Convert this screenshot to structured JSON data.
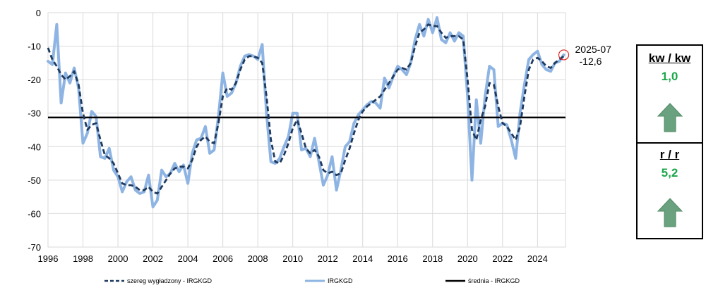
{
  "chart_data": {
    "type": "line",
    "x_axis": {
      "min": 1996,
      "max": 2025.6,
      "ticks": [
        "1996",
        "1998",
        "2000",
        "2002",
        "2004",
        "2006",
        "2008",
        "2010",
        "2012",
        "2014",
        "2016",
        "2018",
        "2020",
        "2022",
        "2024"
      ]
    },
    "y_axis": {
      "min": -70,
      "max": 0,
      "ticks": [
        "0",
        "-10",
        "-20",
        "-30",
        "-40",
        "-50",
        "-60",
        "-70"
      ]
    },
    "grid": true,
    "legend_position": "bottom",
    "series": [
      {
        "name": "IRGKGD",
        "color": "#8eb4e3",
        "style": "solid",
        "points": [
          [
            1996.0,
            -14.5
          ],
          [
            1996.25,
            -15.5
          ],
          [
            1996.5,
            -3.5
          ],
          [
            1996.75,
            -27
          ],
          [
            1997.0,
            -18
          ],
          [
            1997.25,
            -21
          ],
          [
            1997.5,
            -16.5
          ],
          [
            1997.75,
            -22.5
          ],
          [
            1998.0,
            -39
          ],
          [
            1998.25,
            -36
          ],
          [
            1998.5,
            -29.5
          ],
          [
            1998.75,
            -31
          ],
          [
            1999.0,
            -43
          ],
          [
            1999.25,
            -43.5
          ],
          [
            1999.5,
            -40.5
          ],
          [
            1999.75,
            -47
          ],
          [
            2000.0,
            -49
          ],
          [
            2000.25,
            -53.5
          ],
          [
            2000.5,
            -50.5
          ],
          [
            2000.75,
            -49
          ],
          [
            2001.0,
            -53
          ],
          [
            2001.25,
            -54
          ],
          [
            2001.5,
            -53.5
          ],
          [
            2001.75,
            -48.5
          ],
          [
            2002.0,
            -58
          ],
          [
            2002.25,
            -56
          ],
          [
            2002.5,
            -47
          ],
          [
            2002.75,
            -49
          ],
          [
            2003.0,
            -48
          ],
          [
            2003.25,
            -45
          ],
          [
            2003.5,
            -47.5
          ],
          [
            2003.75,
            -45.5
          ],
          [
            2004.0,
            -51
          ],
          [
            2004.25,
            -42
          ],
          [
            2004.5,
            -38
          ],
          [
            2004.75,
            -37.5
          ],
          [
            2005.0,
            -34
          ],
          [
            2005.25,
            -42
          ],
          [
            2005.5,
            -41
          ],
          [
            2005.75,
            -31
          ],
          [
            2006.0,
            -18
          ],
          [
            2006.25,
            -25
          ],
          [
            2006.5,
            -24
          ],
          [
            2006.75,
            -21
          ],
          [
            2007.0,
            -16
          ],
          [
            2007.25,
            -13
          ],
          [
            2007.5,
            -12.5
          ],
          [
            2007.75,
            -13
          ],
          [
            2008.0,
            -14
          ],
          [
            2008.25,
            -9.5
          ],
          [
            2008.5,
            -30
          ],
          [
            2008.75,
            -44.5
          ],
          [
            2009.0,
            -45
          ],
          [
            2009.25,
            -43.5
          ],
          [
            2009.5,
            -40
          ],
          [
            2009.75,
            -37
          ],
          [
            2010.0,
            -30
          ],
          [
            2010.25,
            -30
          ],
          [
            2010.5,
            -41
          ],
          [
            2010.75,
            -40.5
          ],
          [
            2011.0,
            -43
          ],
          [
            2011.25,
            -37.5
          ],
          [
            2011.5,
            -44.5
          ],
          [
            2011.75,
            -51.5
          ],
          [
            2012.0,
            -48.5
          ],
          [
            2012.25,
            -43
          ],
          [
            2012.5,
            -53
          ],
          [
            2012.75,
            -47
          ],
          [
            2013.0,
            -40
          ],
          [
            2013.25,
            -38.5
          ],
          [
            2013.5,
            -33
          ],
          [
            2013.75,
            -30.5
          ],
          [
            2014.0,
            -29
          ],
          [
            2014.25,
            -27.5
          ],
          [
            2014.5,
            -26.5
          ],
          [
            2014.75,
            -27
          ],
          [
            2015.0,
            -28.5
          ],
          [
            2015.25,
            -19.5
          ],
          [
            2015.5,
            -22.5
          ],
          [
            2015.75,
            -19
          ],
          [
            2016.0,
            -16
          ],
          [
            2016.25,
            -17
          ],
          [
            2016.5,
            -18.5
          ],
          [
            2016.75,
            -15
          ],
          [
            2017.0,
            -8
          ],
          [
            2017.25,
            -3.5
          ],
          [
            2017.5,
            -7
          ],
          [
            2017.75,
            -2
          ],
          [
            2018.0,
            -6
          ],
          [
            2018.25,
            -1.5
          ],
          [
            2018.5,
            -8
          ],
          [
            2018.75,
            -9
          ],
          [
            2019.0,
            -6
          ],
          [
            2019.25,
            -8.5
          ],
          [
            2019.5,
            -6
          ],
          [
            2019.75,
            -7
          ],
          [
            2020.0,
            -25
          ],
          [
            2020.25,
            -50
          ],
          [
            2020.5,
            -26
          ],
          [
            2020.75,
            -39
          ],
          [
            2021.0,
            -25
          ],
          [
            2021.25,
            -16
          ],
          [
            2021.5,
            -17
          ],
          [
            2021.75,
            -34
          ],
          [
            2022.0,
            -33
          ],
          [
            2022.25,
            -33.5
          ],
          [
            2022.5,
            -38
          ],
          [
            2022.75,
            -43.5
          ],
          [
            2023.0,
            -30
          ],
          [
            2023.25,
            -21.5
          ],
          [
            2023.5,
            -14
          ],
          [
            2023.75,
            -12.5
          ],
          [
            2024.0,
            -11.5
          ],
          [
            2024.25,
            -15.5
          ],
          [
            2024.5,
            -17
          ],
          [
            2024.75,
            -17.5
          ],
          [
            2025.0,
            -15
          ],
          [
            2025.25,
            -14.5
          ],
          [
            2025.5,
            -12.6
          ]
        ]
      },
      {
        "name": "szereg wygładzony - IRGKGD",
        "color": "#1f3a5f",
        "style": "dashed",
        "points": [
          [
            1996.0,
            -10.5
          ],
          [
            1996.25,
            -14
          ],
          [
            1996.5,
            -16
          ],
          [
            1996.75,
            -18.5
          ],
          [
            1997.0,
            -20
          ],
          [
            1997.25,
            -19
          ],
          [
            1997.5,
            -17.5
          ],
          [
            1997.75,
            -21.5
          ],
          [
            1998.0,
            -30
          ],
          [
            1998.25,
            -35
          ],
          [
            1998.5,
            -33.5
          ],
          [
            1998.75,
            -33
          ],
          [
            1999.0,
            -38
          ],
          [
            1999.25,
            -42.5
          ],
          [
            1999.5,
            -43.5
          ],
          [
            1999.75,
            -45
          ],
          [
            2000.0,
            -48
          ],
          [
            2000.25,
            -51
          ],
          [
            2000.5,
            -51.5
          ],
          [
            2000.75,
            -51.5
          ],
          [
            2001.0,
            -52
          ],
          [
            2001.25,
            -53
          ],
          [
            2001.5,
            -53
          ],
          [
            2001.75,
            -52
          ],
          [
            2002.0,
            -53.5
          ],
          [
            2002.25,
            -54
          ],
          [
            2002.5,
            -52
          ],
          [
            2002.75,
            -50
          ],
          [
            2003.0,
            -48
          ],
          [
            2003.25,
            -46.5
          ],
          [
            2003.5,
            -46
          ],
          [
            2003.75,
            -46
          ],
          [
            2004.0,
            -46.5
          ],
          [
            2004.25,
            -44
          ],
          [
            2004.5,
            -40
          ],
          [
            2004.75,
            -38
          ],
          [
            2005.0,
            -37
          ],
          [
            2005.25,
            -38.5
          ],
          [
            2005.5,
            -39
          ],
          [
            2005.75,
            -33
          ],
          [
            2006.0,
            -25
          ],
          [
            2006.25,
            -22.5
          ],
          [
            2006.5,
            -23
          ],
          [
            2006.75,
            -21
          ],
          [
            2007.0,
            -17
          ],
          [
            2007.25,
            -14
          ],
          [
            2007.5,
            -13
          ],
          [
            2007.75,
            -13
          ],
          [
            2008.0,
            -13.5
          ],
          [
            2008.25,
            -15
          ],
          [
            2008.5,
            -25
          ],
          [
            2008.75,
            -38
          ],
          [
            2009.0,
            -44.5
          ],
          [
            2009.25,
            -45
          ],
          [
            2009.5,
            -42.5
          ],
          [
            2009.75,
            -39
          ],
          [
            2010.0,
            -34.5
          ],
          [
            2010.25,
            -32
          ],
          [
            2010.5,
            -36
          ],
          [
            2010.75,
            -40.5
          ],
          [
            2011.0,
            -42
          ],
          [
            2011.25,
            -41
          ],
          [
            2011.5,
            -43
          ],
          [
            2011.75,
            -47
          ],
          [
            2012.0,
            -48
          ],
          [
            2012.25,
            -47.5
          ],
          [
            2012.5,
            -48.5
          ],
          [
            2012.75,
            -48
          ],
          [
            2013.0,
            -44
          ],
          [
            2013.25,
            -40.5
          ],
          [
            2013.5,
            -36
          ],
          [
            2013.75,
            -32
          ],
          [
            2014.0,
            -29.5
          ],
          [
            2014.25,
            -28
          ],
          [
            2014.5,
            -27
          ],
          [
            2014.75,
            -26
          ],
          [
            2015.0,
            -25
          ],
          [
            2015.25,
            -23
          ],
          [
            2015.5,
            -21
          ],
          [
            2015.75,
            -19
          ],
          [
            2016.0,
            -17
          ],
          [
            2016.25,
            -16.5
          ],
          [
            2016.5,
            -17
          ],
          [
            2016.75,
            -15
          ],
          [
            2017.0,
            -10
          ],
          [
            2017.25,
            -6
          ],
          [
            2017.5,
            -5
          ],
          [
            2017.75,
            -3.5
          ],
          [
            2018.0,
            -4
          ],
          [
            2018.25,
            -4
          ],
          [
            2018.5,
            -6
          ],
          [
            2018.75,
            -7.5
          ],
          [
            2019.0,
            -7
          ],
          [
            2019.25,
            -7
          ],
          [
            2019.5,
            -7
          ],
          [
            2019.75,
            -8
          ],
          [
            2020.0,
            -20
          ],
          [
            2020.25,
            -35
          ],
          [
            2020.5,
            -38
          ],
          [
            2020.75,
            -32
          ],
          [
            2021.0,
            -28
          ],
          [
            2021.25,
            -21
          ],
          [
            2021.5,
            -21.5
          ],
          [
            2021.75,
            -28
          ],
          [
            2022.0,
            -33
          ],
          [
            2022.25,
            -34
          ],
          [
            2022.5,
            -36
          ],
          [
            2022.75,
            -38
          ],
          [
            2023.0,
            -34
          ],
          [
            2023.25,
            -25
          ],
          [
            2023.5,
            -17
          ],
          [
            2023.75,
            -14
          ],
          [
            2024.0,
            -13.5
          ],
          [
            2024.25,
            -14.5
          ],
          [
            2024.5,
            -16
          ],
          [
            2024.75,
            -16.5
          ],
          [
            2025.0,
            -15
          ],
          [
            2025.25,
            -14
          ],
          [
            2025.5,
            -13
          ]
        ]
      },
      {
        "name": "średnia - IRGKGD",
        "color": "#000000",
        "style": "solid",
        "value": -31.3
      }
    ],
    "annotation": {
      "date_label": "2025-07",
      "value_label": "-12,6",
      "x": 2025.5,
      "y": -12.6,
      "marker_color": "#e02020"
    }
  },
  "panel": {
    "qoq": {
      "title": "kw / kw",
      "value": "1,0",
      "arrow": "up-arrow",
      "color": "#1aa64a"
    },
    "yoy": {
      "title": "r / r",
      "value": "5,2",
      "arrow": "up-arrow",
      "color": "#1aa64a"
    }
  }
}
